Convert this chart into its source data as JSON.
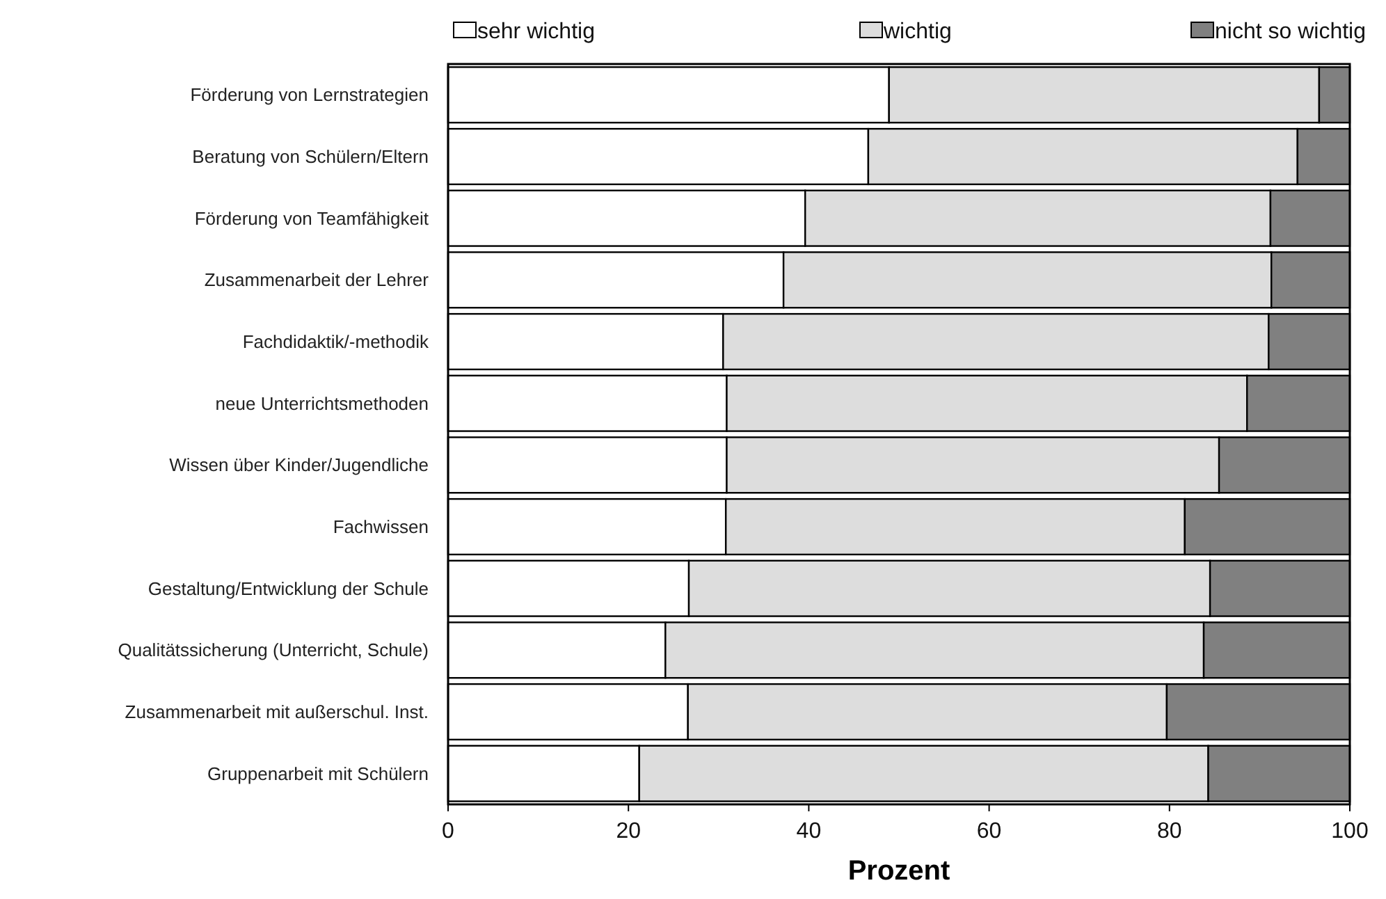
{
  "chart_data": {
    "type": "bar",
    "orientation": "horizontal",
    "stacked": true,
    "xlabel": "Prozent",
    "legend": "top",
    "grid": false,
    "categories": [
      "Förderung von Lernstrategien",
      "Beratung von Schülern/Eltern",
      "Förderung von Teamfähigkeit",
      "Zusammenarbeit der Lehrer",
      "Fachdidaktik/-methodik",
      "neue Unterrichtsmethoden",
      "Wissen über Kinder/Jugendliche",
      "Fachwissen",
      "Gestaltung/Entwicklung der Schule",
      "Qualitätssicherung (Unterricht, Schule)",
      "Zusammenarbeit mit außerschul. Inst.",
      "Gruppenarbeit mit Schülern"
    ],
    "xlim": [
      0,
      100
    ],
    "xticks": [
      0,
      20,
      40,
      60,
      80,
      100
    ],
    "series": [
      {
        "name": "sehr wichtig",
        "color": "#ffffff",
        "values": [
          48.9,
          46.6,
          39.6,
          37.2,
          30.5,
          30.9,
          30.9,
          30.8,
          26.7,
          24.1,
          26.6,
          21.2
        ]
      },
      {
        "name": "wichtig",
        "color": "#dddddd",
        "values": [
          47.7,
          47.6,
          51.6,
          54.1,
          60.5,
          57.7,
          54.6,
          50.9,
          57.8,
          59.7,
          53.1,
          63.1
        ]
      },
      {
        "name": "nicht so wichtig",
        "color": "#808080",
        "values": [
          3.4,
          5.8,
          8.8,
          8.7,
          9.0,
          11.4,
          14.5,
          18.3,
          15.5,
          16.2,
          20.3,
          15.7
        ]
      }
    ]
  }
}
